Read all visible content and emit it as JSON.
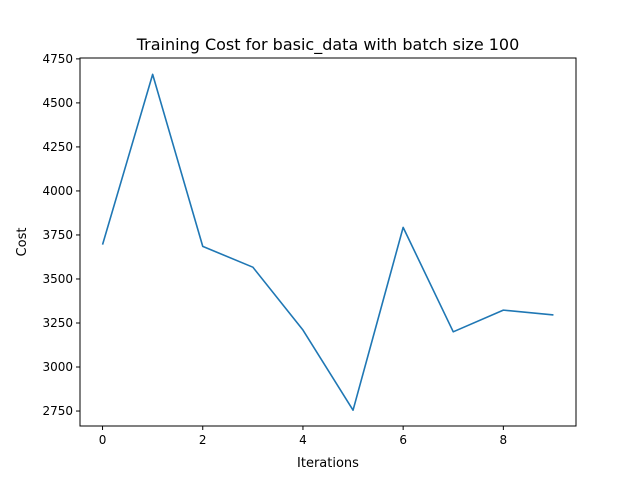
{
  "chart_data": {
    "type": "line",
    "title": "Training Cost for basic_data with batch size 100",
    "xlabel": "Iterations",
    "ylabel": "Cost",
    "xlim": [
      -0.45,
      9.45
    ],
    "ylim": [
      2665,
      4755
    ],
    "xticks": [
      0,
      2,
      4,
      6,
      8
    ],
    "yticks": [
      2750,
      3000,
      3250,
      3500,
      3750,
      4000,
      4250,
      4500,
      4750
    ],
    "grid": false,
    "series": [
      {
        "name": "cost",
        "color": "#1f77b4",
        "x": [
          0,
          1,
          2,
          3,
          4,
          5,
          6,
          7,
          8,
          9
        ],
        "values": [
          3695,
          4662,
          3685,
          3567,
          3210,
          2755,
          3793,
          3200,
          3323,
          3296
        ]
      }
    ]
  }
}
